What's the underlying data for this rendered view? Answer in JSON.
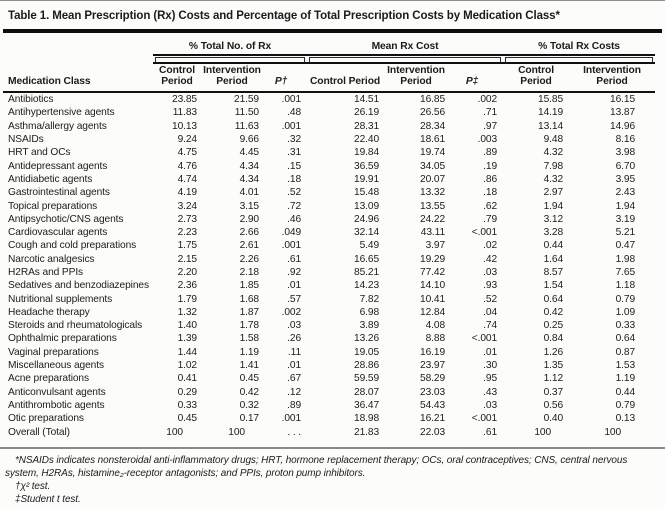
{
  "page": {
    "background": "#fcfcfa",
    "heavy_rule_color": "#0e0e0e",
    "mid_rule_color": "#8a8a8a",
    "text_color": "#1c1c1c"
  },
  "title": "Table 1. Mean Prescription (Rx) Costs and Percentage of Total Prescription Costs by Medication Class*",
  "table": {
    "row_header": "Medication Class",
    "groups": [
      {
        "label": "% Total No. of Rx",
        "columns": [
          "Control Period",
          "Intervention Period",
          "P†"
        ]
      },
      {
        "label": "Mean Rx Cost",
        "columns": [
          "Control Period",
          "Intervention Period",
          "P‡"
        ]
      },
      {
        "label": "% Total Rx Costs",
        "columns": [
          "Control Period",
          "Intervention Period"
        ]
      }
    ],
    "rows": [
      {
        "name": "Antibiotics",
        "values": [
          "23.85",
          "21.59",
          ".001",
          "14.51",
          "16.85",
          ".002",
          "15.85",
          "16.15"
        ]
      },
      {
        "name": "Antihypertensive agents",
        "values": [
          "11.83",
          "11.50",
          ".48",
          "26.19",
          "26.56",
          ".71",
          "14.19",
          "13.87"
        ]
      },
      {
        "name": "Asthma/allergy agents",
        "values": [
          "10.13",
          "11.63",
          ".001",
          "28.31",
          "28.34",
          ".97",
          "13.14",
          "14.96"
        ]
      },
      {
        "name": "NSAIDs",
        "values": [
          "9.24",
          "9.66",
          ".32",
          "22.40",
          "18.61",
          ".003",
          "9.48",
          "8.16"
        ]
      },
      {
        "name": "HRT and OCs",
        "values": [
          "4.75",
          "4.45",
          ".31",
          "19.84",
          "19.74",
          ".89",
          "4.32",
          "3.98"
        ]
      },
      {
        "name": "Antidepressant agents",
        "values": [
          "4.76",
          "4.34",
          ".15",
          "36.59",
          "34.05",
          ".19",
          "7.98",
          "6.70"
        ]
      },
      {
        "name": "Antidiabetic agents",
        "values": [
          "4.74",
          "4.34",
          ".18",
          "19.91",
          "20.07",
          ".86",
          "4.32",
          "3.95"
        ]
      },
      {
        "name": "Gastrointestinal agents",
        "values": [
          "4.19",
          "4.01",
          ".52",
          "15.48",
          "13.32",
          ".18",
          "2.97",
          "2.43"
        ]
      },
      {
        "name": "Topical preparations",
        "values": [
          "3.24",
          "3.15",
          ".72",
          "13.09",
          "13.55",
          ".62",
          "1.94",
          "1.94"
        ]
      },
      {
        "name": "Antipsychotic/CNS agents",
        "values": [
          "2.73",
          "2.90",
          ".46",
          "24.96",
          "24.22",
          ".79",
          "3.12",
          "3.19"
        ]
      },
      {
        "name": "Cardiovascular agents",
        "values": [
          "2.23",
          "2.66",
          ".049",
          "32.14",
          "43.11",
          "<.001",
          "3.28",
          "5.21"
        ]
      },
      {
        "name": "Cough and cold preparations",
        "values": [
          "1.75",
          "2.61",
          ".001",
          "5.49",
          "3.97",
          ".02",
          "0.44",
          "0.47"
        ]
      },
      {
        "name": "Narcotic analgesics",
        "values": [
          "2.15",
          "2.26",
          ".61",
          "16.65",
          "19.29",
          ".42",
          "1.64",
          "1.98"
        ]
      },
      {
        "name": "H2RAs and PPIs",
        "values": [
          "2.20",
          "2.18",
          ".92",
          "85.21",
          "77.42",
          ".03",
          "8.57",
          "7.65"
        ]
      },
      {
        "name": "Sedatives and benzodiazepines",
        "values": [
          "2.36",
          "1.85",
          ".01",
          "14.23",
          "14.10",
          ".93",
          "1.54",
          "1.18"
        ]
      },
      {
        "name": "Nutritional supplements",
        "values": [
          "1.79",
          "1.68",
          ".57",
          "7.82",
          "10.41",
          ".52",
          "0.64",
          "0.79"
        ]
      },
      {
        "name": "Headache therapy",
        "values": [
          "1.32",
          "1.87",
          ".002",
          "6.98",
          "12.84",
          ".04",
          "0.42",
          "1.09"
        ]
      },
      {
        "name": "Steroids and rheumatologicals",
        "values": [
          "1.40",
          "1.78",
          ".03",
          "3.89",
          "4.08",
          ".74",
          "0.25",
          "0.33"
        ]
      },
      {
        "name": "Ophthalmic preparations",
        "values": [
          "1.39",
          "1.58",
          ".26",
          "13.26",
          "8.88",
          "<.001",
          "0.84",
          "0.64"
        ]
      },
      {
        "name": "Vaginal preparations",
        "values": [
          "1.44",
          "1.19",
          ".11",
          "19.05",
          "16.19",
          ".01",
          "1.26",
          "0.87"
        ]
      },
      {
        "name": "Miscellaneous agents",
        "values": [
          "1.02",
          "1.41",
          ".01",
          "28.86",
          "23.97",
          ".30",
          "1.35",
          "1.53"
        ]
      },
      {
        "name": "Acne preparations",
        "values": [
          "0.41",
          "0.45",
          ".67",
          "59.59",
          "58.29",
          ".95",
          "1.12",
          "1.19"
        ]
      },
      {
        "name": "Anticonvulsant agents",
        "values": [
          "0.29",
          "0.42",
          ".12",
          "28.07",
          "23.03",
          ".43",
          "0.37",
          "0.44"
        ]
      },
      {
        "name": "Antithrombotic agents",
        "values": [
          "0.33",
          "0.32",
          ".89",
          "36.47",
          "54.43",
          ".03",
          "0.56",
          "0.79"
        ]
      },
      {
        "name": "Otic preparations",
        "values": [
          "0.45",
          "0.17",
          ".001",
          "18.98",
          "16.21",
          "<.001",
          "0.40",
          "0.13"
        ]
      },
      {
        "name": "Overall (Total)",
        "values": [
          "100",
          "100",
          ". . .",
          "21.83",
          "22.03",
          ".61",
          "100",
          "100"
        ]
      }
    ]
  },
  "footnotes": [
    "*NSAIDs indicates nonsteroidal anti-inflammatory drugs; HRT, hormone replacement therapy; OCs, oral contraceptives; CNS, central nervous system, H2RAs, histamine₂-receptor antagonists; and PPIs, proton pump inhibitors.",
    "†χ² test.",
    "‡Student t test."
  ]
}
